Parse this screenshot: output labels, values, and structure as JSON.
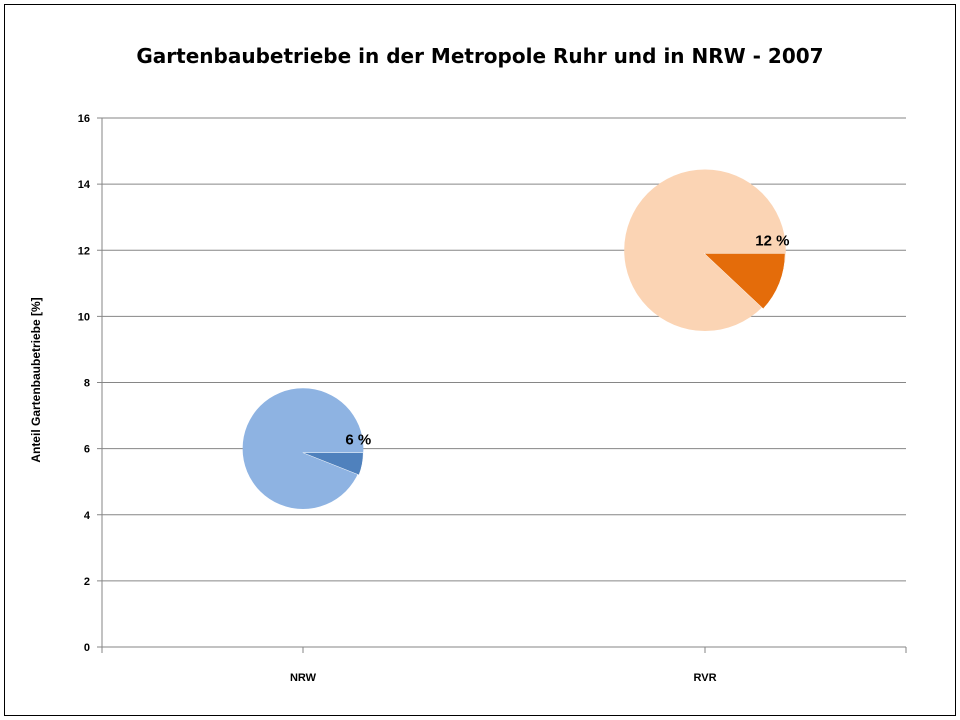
{
  "chart_data": {
    "type": "pie",
    "title": "Gartenbaubetriebe in der Metropole Ruhr und in NRW - 2007",
    "ylabel": "Anteil Gartenbaubetriebe [%]",
    "xlabel": "",
    "ylim": [
      0,
      16
    ],
    "yticks": [
      0,
      2,
      4,
      6,
      8,
      10,
      12,
      14,
      16
    ],
    "categories": [
      "NRW",
      "RVR"
    ],
    "values": [
      6,
      12
    ],
    "data_labels": [
      "6 %",
      "12 %"
    ],
    "y_positions": [
      6,
      12
    ],
    "grid": true,
    "colors": {
      "NRW": {
        "rest": "#8eb3e2",
        "slice": "#4f81bd"
      },
      "RVR": {
        "rest": "#fbd4b4",
        "slice": "#e46c0a"
      }
    }
  }
}
